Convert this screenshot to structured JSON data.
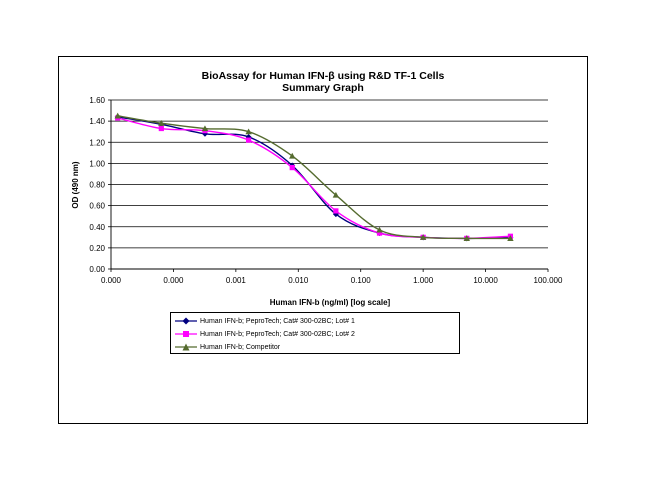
{
  "chart_data": {
    "type": "line",
    "title": "BioAssay for Human IFN-β using R&D TF-1 Cells",
    "subtitle": "Summary Graph",
    "xlabel": "Human IFN-b (ng/ml) [log scale]",
    "ylabel": "OD (490 nm)",
    "x_scale": "log",
    "x_ticks": [
      "0.000",
      "0.000",
      "0.001",
      "0.010",
      "0.100",
      "1.000",
      "10.000",
      "100.000"
    ],
    "y_ticks": [
      "0.00",
      "0.20",
      "0.40",
      "0.60",
      "0.80",
      "1.00",
      "1.20",
      "1.40",
      "1.60"
    ],
    "ylim": [
      0,
      1.6
    ],
    "grid": "horizontal",
    "legend_position": "bottom",
    "series": [
      {
        "name": "Human IFN-b; PeproTech; Cat# 300-02BC; Lot# 1",
        "color": "#000080",
        "marker": "diamond",
        "x": [
          1.28e-05,
          6.4e-05,
          0.00032,
          0.0016,
          0.008,
          0.04,
          0.2,
          1,
          5,
          25
        ],
        "y": [
          1.44,
          1.37,
          1.28,
          1.25,
          0.98,
          0.52,
          0.34,
          0.3,
          0.29,
          0.3
        ]
      },
      {
        "name": "Human IFN-b; PeproTech; Cat# 300-02BC; Lot# 2",
        "color": "#ff00ff",
        "marker": "square",
        "x": [
          1.28e-05,
          6.4e-05,
          0.00032,
          0.0016,
          0.008,
          0.04,
          0.2,
          1,
          5,
          25
        ],
        "y": [
          1.43,
          1.33,
          1.31,
          1.22,
          0.96,
          0.55,
          0.34,
          0.3,
          0.29,
          0.31
        ]
      },
      {
        "name": "Human IFN-b; Competitor",
        "color": "#556b2f",
        "marker": "triangle",
        "x": [
          1.28e-05,
          6.4e-05,
          0.00032,
          0.0016,
          0.008,
          0.04,
          0.2,
          1,
          5,
          25
        ],
        "y": [
          1.45,
          1.38,
          1.33,
          1.3,
          1.07,
          0.7,
          0.37,
          0.3,
          0.29,
          0.29
        ]
      }
    ]
  }
}
